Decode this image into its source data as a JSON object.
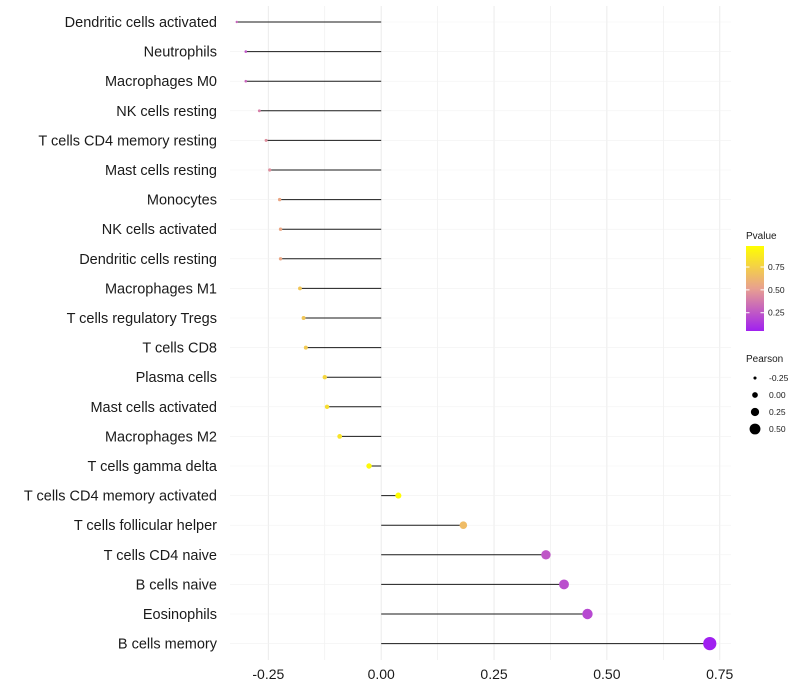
{
  "chart_data": {
    "type": "lollipop",
    "title": "",
    "xlabel": "",
    "ylabel": "",
    "xlim": [
      -0.335,
      0.775
    ],
    "x_ticks": [
      -0.25,
      0.0,
      0.25,
      0.5,
      0.75
    ],
    "x_tick_labels": [
      "-0.25",
      "0.00",
      "0.25",
      "0.50",
      "0.75"
    ],
    "grid": true,
    "categories": [
      "Dendritic cells activated",
      "Neutrophils",
      "Macrophages M0",
      "NK cells resting",
      "T cells CD4 memory resting",
      "Mast cells resting",
      "Monocytes",
      "NK cells activated",
      "Dendritic cells resting",
      "Macrophages M1",
      "T cells regulatory  Tregs ",
      "T cells CD8",
      "Plasma cells",
      "Mast cells activated",
      "Macrophages M2",
      "T cells gamma delta",
      "T cells CD4 memory activated",
      "T cells follicular helper",
      "T cells CD4 naive",
      "B cells naive",
      "Eosinophils",
      "B cells memory"
    ],
    "pearson": [
      -0.32,
      -0.3,
      -0.3,
      -0.27,
      -0.255,
      -0.247,
      -0.225,
      -0.223,
      -0.223,
      -0.18,
      -0.172,
      -0.167,
      -0.125,
      -0.12,
      -0.092,
      -0.027,
      0.038,
      0.182,
      0.365,
      0.405,
      0.457,
      0.728
    ],
    "pvalue": [
      0.3,
      0.25,
      0.3,
      0.4,
      0.45,
      0.45,
      0.55,
      0.55,
      0.55,
      0.7,
      0.7,
      0.72,
      0.78,
      0.82,
      0.85,
      0.95,
      0.97,
      0.65,
      0.25,
      0.22,
      0.2,
      0.05
    ],
    "legend_color": {
      "title": "Pvalue",
      "ticks": [
        0.75,
        0.5,
        0.25
      ],
      "tick_labels": [
        "0.75",
        "0.50",
        "0.25"
      ],
      "range": [
        0.05,
        0.98
      ],
      "low_color": "#a020f0",
      "mid_color": "#e8a090",
      "high_color": "#ffff00"
    },
    "legend_size": {
      "title": "Pearson",
      "values": [
        -0.25,
        0.0,
        0.25,
        0.5
      ],
      "labels": [
        "-0.25",
        "0.00",
        "0.25",
        "0.50"
      ]
    },
    "legend_position": "right",
    "colors": {
      "segment": "#1a1a1a",
      "grid": "#ebebeb"
    }
  }
}
